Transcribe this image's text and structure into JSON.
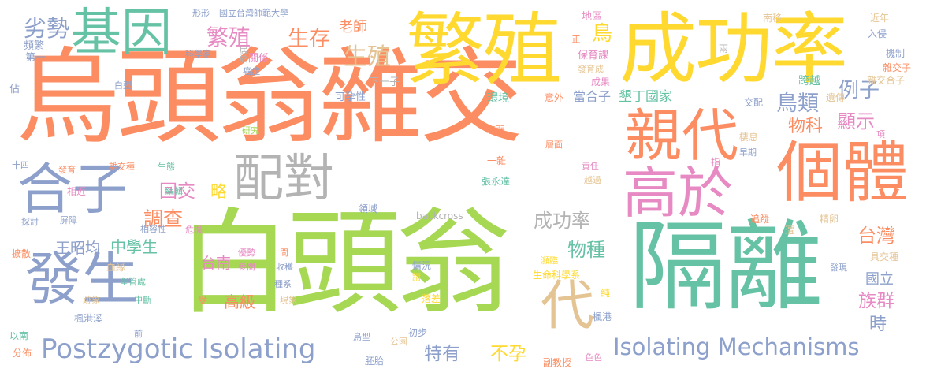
{
  "palette": {
    "green": "#a6d854",
    "orange": "#fc8d62",
    "blue": "#8da0cb",
    "pink": "#e78ac3",
    "yellow": "#ffd92f",
    "teal": "#66c2a5",
    "tan": "#e5c494",
    "gray": "#b3b3b3"
  },
  "words": [
    {
      "text": "烏頭翁雜交",
      "color": "orange"
    },
    {
      "text": "白頭翁",
      "color": "green"
    },
    {
      "text": "成功率",
      "color": "yellow"
    },
    {
      "text": "繁殖",
      "color": "yellow"
    },
    {
      "text": "隔離",
      "color": "teal"
    },
    {
      "text": "個體",
      "color": "orange"
    },
    {
      "text": "親代",
      "color": "orange"
    },
    {
      "text": "高於",
      "color": "pink"
    },
    {
      "text": "合子",
      "color": "blue"
    },
    {
      "text": "發生",
      "color": "blue"
    },
    {
      "text": "配對",
      "color": "gray"
    },
    {
      "text": "基因",
      "color": "teal"
    },
    {
      "text": "代",
      "color": "tan"
    },
    {
      "text": "Postzygotic Isolating",
      "color": "blue"
    },
    {
      "text": "Isolating Mechanisms",
      "color": "blue"
    },
    {
      "text": "劣勢",
      "color": "blue"
    },
    {
      "text": "繁殖",
      "color": "pink"
    },
    {
      "text": "生存",
      "color": "orange"
    },
    {
      "text": "生殖",
      "color": "tan"
    },
    {
      "text": "老師",
      "color": "orange"
    },
    {
      "text": "例子",
      "color": "blue"
    },
    {
      "text": "鳥類",
      "color": "blue"
    },
    {
      "text": "顯示",
      "color": "pink"
    },
    {
      "text": "物科",
      "color": "orange"
    },
    {
      "text": "成功率",
      "color": "gray"
    },
    {
      "text": "回交",
      "color": "pink"
    },
    {
      "text": "略",
      "color": "yellow"
    },
    {
      "text": "調查",
      "color": "orange"
    },
    {
      "text": "台灣",
      "color": "orange"
    },
    {
      "text": "物種",
      "color": "teal"
    },
    {
      "text": "中學生",
      "color": "teal"
    },
    {
      "text": "台南",
      "color": "pink"
    },
    {
      "text": "高級",
      "color": "orange"
    },
    {
      "text": "王昭均",
      "color": "blue"
    },
    {
      "text": "族群",
      "color": "pink"
    },
    {
      "text": "國立",
      "color": "blue"
    },
    {
      "text": "時",
      "color": "blue"
    },
    {
      "text": "特有",
      "color": "blue"
    },
    {
      "text": "不孕",
      "color": "yellow"
    },
    {
      "text": "鳥",
      "color": "yellow"
    },
    {
      "text": "頻繁",
      "color": "blue"
    },
    {
      "text": "第一",
      "color": "blue"
    },
    {
      "text": "佔",
      "color": "blue"
    },
    {
      "text": "白型",
      "color": "blue"
    },
    {
      "text": "形形",
      "color": "blue"
    },
    {
      "text": "國立台灣師範大學",
      "color": "blue"
    },
    {
      "text": "科學家",
      "color": "blue"
    },
    {
      "text": "居於",
      "color": "gray"
    },
    {
      "text": "關係",
      "color": "pink"
    },
    {
      "text": "癌症",
      "color": "blue"
    },
    {
      "text": "下一子",
      "color": "gray"
    },
    {
      "text": "可孕性",
      "color": "blue"
    },
    {
      "text": "地區",
      "color": "pink"
    },
    {
      "text": "保育課",
      "color": "pink"
    },
    {
      "text": "發育成",
      "color": "tan"
    },
    {
      "text": "成果",
      "color": "pink"
    },
    {
      "text": "正",
      "color": "orange"
    },
    {
      "text": "環境",
      "color": "teal"
    },
    {
      "text": "意外",
      "color": "orange"
    },
    {
      "text": "當合子",
      "color": "blue"
    },
    {
      "text": "墾丁國家",
      "color": "teal"
    },
    {
      "text": "兩",
      "color": "gray"
    },
    {
      "text": "南移",
      "color": "tan"
    },
    {
      "text": "近年",
      "color": "tan"
    },
    {
      "text": "入侵",
      "color": "blue"
    },
    {
      "text": "機制",
      "color": "blue"
    },
    {
      "text": "雜交子",
      "color": "orange"
    },
    {
      "text": "雜交合子",
      "color": "tan"
    },
    {
      "text": "跨越",
      "color": "teal"
    },
    {
      "text": "交配",
      "color": "blue"
    },
    {
      "text": "遺傳",
      "color": "tan"
    },
    {
      "text": "項",
      "color": "pink"
    },
    {
      "text": "棲息",
      "color": "tan"
    },
    {
      "text": "早期",
      "color": "blue"
    },
    {
      "text": "十四",
      "color": "blue"
    },
    {
      "text": "研究",
      "color": "green"
    },
    {
      "text": "衰弱",
      "color": "orange"
    },
    {
      "text": "層面",
      "color": "orange"
    },
    {
      "text": "發育",
      "color": "orange"
    },
    {
      "text": "雜交種",
      "color": "orange"
    },
    {
      "text": "生態",
      "color": "teal"
    },
    {
      "text": "一雜",
      "color": "orange"
    },
    {
      "text": "責任",
      "color": "pink"
    },
    {
      "text": "指",
      "color": "pink"
    },
    {
      "text": "相近",
      "color": "pink"
    },
    {
      "text": "編輯",
      "color": "teal"
    },
    {
      "text": "張永達",
      "color": "teal"
    },
    {
      "text": "越過",
      "color": "tan"
    },
    {
      "text": "探討",
      "color": "blue"
    },
    {
      "text": "屏障",
      "color": "blue"
    },
    {
      "text": "領域",
      "color": "blue"
    },
    {
      "text": "backcross",
      "color": "gray"
    },
    {
      "text": "追蹤",
      "color": "orange"
    },
    {
      "text": "精卵",
      "color": "tan"
    },
    {
      "text": "遭",
      "color": "tan"
    },
    {
      "text": "具交種",
      "color": "tan"
    },
    {
      "text": "擴散",
      "color": "orange"
    },
    {
      "text": "相容性",
      "color": "blue"
    },
    {
      "text": "危機",
      "color": "pink"
    },
    {
      "text": "優勢",
      "color": "pink"
    },
    {
      "text": "參閱",
      "color": "pink"
    },
    {
      "text": "間",
      "color": "orange"
    },
    {
      "text": "收穫",
      "color": "blue"
    },
    {
      "text": "情況",
      "color": "blue"
    },
    {
      "text": "請",
      "color": "yellow"
    },
    {
      "text": "瀕臨",
      "color": "yellow"
    },
    {
      "text": "生命科學系",
      "color": "yellow"
    },
    {
      "text": "發現",
      "color": "blue"
    },
    {
      "text": "血緣",
      "color": "tan"
    },
    {
      "text": "墾管處",
      "color": "teal"
    },
    {
      "text": "受",
      "color": "orange"
    },
    {
      "text": "種系",
      "color": "blue"
    },
    {
      "text": "現象",
      "color": "tan"
    },
    {
      "text": "跡象",
      "color": "tan"
    },
    {
      "text": "中斷",
      "color": "teal"
    },
    {
      "text": "落差",
      "color": "yellow"
    },
    {
      "text": "純",
      "color": "yellow"
    },
    {
      "text": "楓港溪",
      "color": "blue"
    },
    {
      "text": "楓港",
      "color": "blue"
    },
    {
      "text": "以南",
      "color": "teal"
    },
    {
      "text": "前",
      "color": "blue"
    },
    {
      "text": "初步",
      "color": "blue"
    },
    {
      "text": "烏型",
      "color": "blue"
    },
    {
      "text": "公園",
      "color": "tan"
    },
    {
      "text": "分佈",
      "color": "orange"
    },
    {
      "text": "胚胎",
      "color": "blue"
    },
    {
      "text": "副教授",
      "color": "orange"
    },
    {
      "text": "色色",
      "color": "pink"
    }
  ]
}
